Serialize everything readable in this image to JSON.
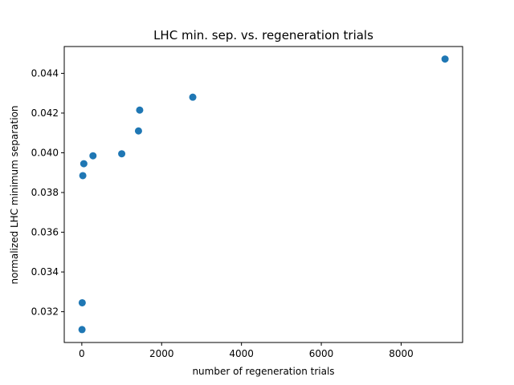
{
  "chart_data": {
    "type": "scatter",
    "title": "LHC min. sep. vs. regeneration trials",
    "xlabel": "number of regeneration trials",
    "ylabel": "normalized LHC minimum separation",
    "xlim": [
      -440,
      9540
    ],
    "ylim": [
      0.03045,
      0.04535
    ],
    "xticks": [
      0,
      2000,
      4000,
      6000,
      8000
    ],
    "xtick_labels": [
      "0",
      "2000",
      "4000",
      "6000",
      "8000"
    ],
    "yticks": [
      0.032,
      0.034,
      0.036,
      0.038,
      0.04,
      0.042,
      0.044
    ],
    "ytick_labels": [
      "0.032",
      "0.034",
      "0.036",
      "0.038",
      "0.040",
      "0.042",
      "0.044"
    ],
    "grid": false,
    "marker_color": "#1f77b4",
    "points": [
      {
        "x": 5,
        "y": 0.0311
      },
      {
        "x": 10,
        "y": 0.03245
      },
      {
        "x": 25,
        "y": 0.03885
      },
      {
        "x": 50,
        "y": 0.03945
      },
      {
        "x": 280,
        "y": 0.03985
      },
      {
        "x": 1000,
        "y": 0.03995
      },
      {
        "x": 1420,
        "y": 0.0411
      },
      {
        "x": 1450,
        "y": 0.04215
      },
      {
        "x": 2780,
        "y": 0.0428
      },
      {
        "x": 9100,
        "y": 0.04472
      }
    ]
  }
}
